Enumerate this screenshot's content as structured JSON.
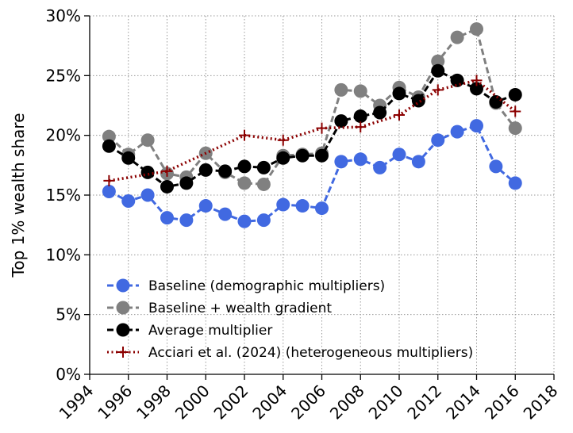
{
  "chart_data": {
    "type": "line",
    "ylabel": "Top 1% wealth share",
    "xlim": [
      1994,
      2018
    ],
    "xticks": [
      1994,
      1996,
      1998,
      2000,
      2002,
      2004,
      2006,
      2008,
      2010,
      2012,
      2014,
      2016,
      2018
    ],
    "ylim": [
      0,
      30
    ],
    "yticks": [
      {
        "value": 0,
        "label": "0%"
      },
      {
        "value": 5,
        "label": "5%"
      },
      {
        "value": 10,
        "label": "10%"
      },
      {
        "value": 15,
        "label": "15%"
      },
      {
        "value": 20,
        "label": "20%"
      },
      {
        "value": 25,
        "label": "25%"
      },
      {
        "value": 30,
        "label": "30%"
      }
    ],
    "grid": true,
    "legend": "lower left",
    "series": [
      {
        "name": "Baseline (demographic multipliers)",
        "color": "#4169e1",
        "linestyle": "dashed",
        "marker": "circle",
        "x": [
          1995,
          1996,
          1997,
          1998,
          1999,
          2000,
          2001,
          2002,
          2003,
          2004,
          2005,
          2006,
          2007,
          2008,
          2009,
          2010,
          2011,
          2012,
          2013,
          2014,
          2015,
          2016
        ],
        "values": [
          15.3,
          14.5,
          15.0,
          13.1,
          12.9,
          14.1,
          13.4,
          12.8,
          12.9,
          14.2,
          14.1,
          13.9,
          17.8,
          18.0,
          17.3,
          18.4,
          17.8,
          19.6,
          20.3,
          20.8,
          17.4,
          16.0
        ]
      },
      {
        "name": "Baseline + wealth gradient",
        "color": "#808080",
        "linestyle": "dashed",
        "marker": "circle",
        "x": [
          1995,
          1996,
          1997,
          1998,
          1999,
          2000,
          2001,
          2002,
          2003,
          2004,
          2005,
          2006,
          2007,
          2008,
          2009,
          2010,
          2011,
          2012,
          2013,
          2014,
          2015,
          2016
        ],
        "values": [
          19.9,
          18.4,
          19.6,
          16.8,
          16.5,
          18.5,
          16.9,
          16.0,
          15.9,
          18.3,
          18.4,
          18.5,
          23.8,
          23.7,
          22.5,
          24.0,
          23.2,
          26.2,
          28.2,
          28.9,
          22.7,
          20.6
        ]
      },
      {
        "name": "Average multiplier",
        "color": "#000000",
        "linestyle": "dashed",
        "marker": "circle",
        "x": [
          1995,
          1996,
          1997,
          1998,
          1999,
          2000,
          2001,
          2002,
          2003,
          2004,
          2005,
          2006,
          2007,
          2008,
          2009,
          2010,
          2011,
          2012,
          2013,
          2014,
          2015,
          2016
        ],
        "values": [
          19.1,
          18.1,
          16.9,
          15.7,
          16.0,
          17.1,
          17.0,
          17.4,
          17.3,
          18.1,
          18.3,
          18.3,
          21.2,
          21.6,
          21.9,
          23.5,
          22.9,
          25.4,
          24.6,
          23.9,
          22.8,
          23.4
        ]
      },
      {
        "name": "Acciari et al. (2024) (heterogeneous multipliers)",
        "color": "#8b0000",
        "linestyle": "dotted",
        "marker": "plus",
        "x": [
          1995,
          1998,
          2002,
          2004,
          2006,
          2008,
          2010,
          2012,
          2014,
          2016
        ],
        "values": [
          16.2,
          17.0,
          20.0,
          19.6,
          20.6,
          20.7,
          21.7,
          23.8,
          24.6,
          22.0
        ]
      }
    ]
  }
}
